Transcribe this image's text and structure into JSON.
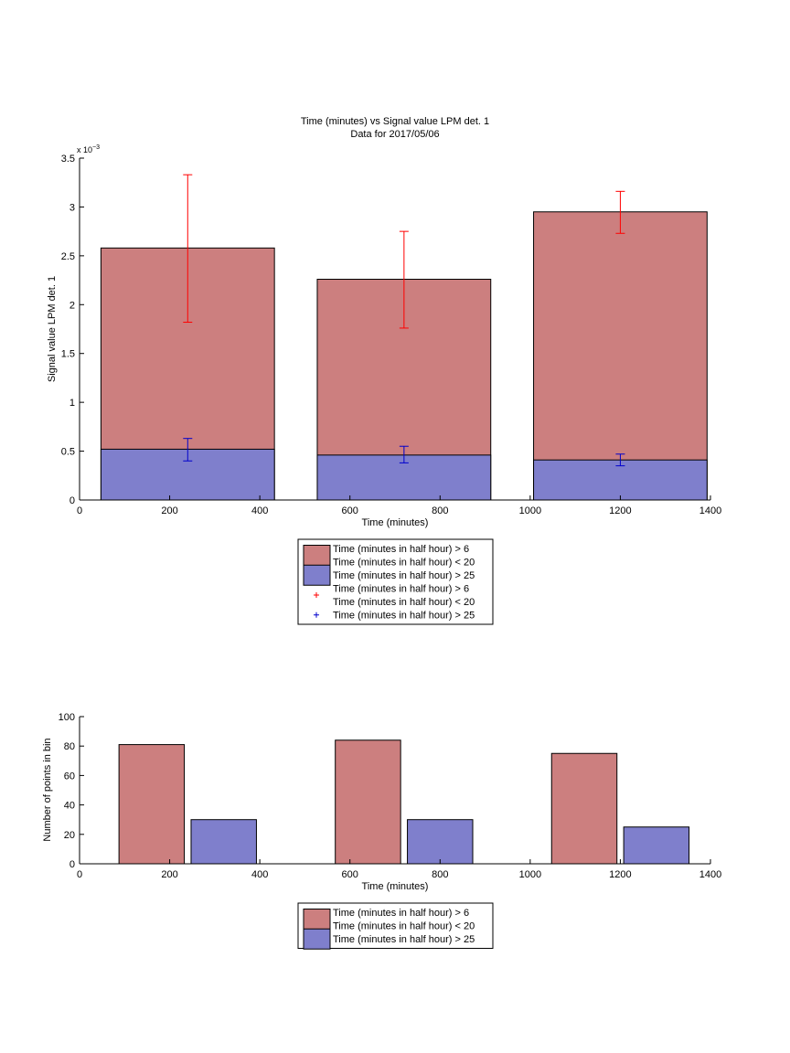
{
  "colors": {
    "red_fill": "#cc7f7f",
    "blue_fill": "#7f7fcc",
    "red_err": "#ff0000",
    "blue_err": "#0000cc"
  },
  "chart_data": [
    {
      "type": "bar",
      "title": "Time (minutes) vs Signal value LPM det. 1",
      "subtitle": "Data for 2017/05/06",
      "xlabel": "Time (minutes)",
      "ylabel": "Signal value LPM det. 1",
      "y_exponent_label": "x 10",
      "y_exponent": "−3",
      "xlim": [
        0,
        1400
      ],
      "ylim": [
        0,
        3.5
      ],
      "y_scale_factor": 0.001,
      "xticks": [
        "0",
        "200",
        "400",
        "600",
        "800",
        "1000",
        "1200",
        "1400"
      ],
      "xtick_values": [
        0,
        200,
        400,
        600,
        800,
        1000,
        1200,
        1400
      ],
      "yticks": [
        "0",
        "0.5",
        "1",
        "1.5",
        "2",
        "2.5",
        "3",
        "3.5"
      ],
      "ytick_values": [
        0,
        0.5,
        1,
        1.5,
        2,
        2.5,
        3,
        3.5
      ],
      "x": [
        240,
        720,
        1200
      ],
      "bar_width": 385,
      "stacked": true,
      "series": [
        {
          "name": "Time (minutes in half hour) > 6 Time (minutes in half hour) < 20",
          "color": "red",
          "values": [
            2.58,
            2.26,
            2.95
          ],
          "err_low": [
            1.82,
            1.76,
            2.73
          ],
          "err_high": [
            3.33,
            2.75,
            3.16
          ]
        },
        {
          "name": "Time (minutes in half hour) > 25",
          "color": "blue",
          "values": [
            0.52,
            0.46,
            0.41
          ],
          "err_low": [
            0.4,
            0.38,
            0.35
          ],
          "err_high": [
            0.63,
            0.55,
            0.47
          ]
        }
      ],
      "legend_position": "below",
      "legend": [
        {
          "kind": "patch",
          "color": "red",
          "lines": [
            "Time (minutes in half hour) > 6",
            "Time (minutes in half hour) < 20"
          ]
        },
        {
          "kind": "patch",
          "color": "blue",
          "lines": [
            "Time (minutes in half hour) > 25"
          ]
        },
        {
          "kind": "marker",
          "color": "red",
          "lines": [
            "Time (minutes in half hour) > 6",
            "Time (minutes in half hour) < 20"
          ]
        },
        {
          "kind": "marker",
          "color": "blue",
          "lines": [
            "Time (minutes in half hour) > 25"
          ]
        }
      ]
    },
    {
      "type": "bar",
      "xlabel": "Time (minutes)",
      "ylabel": "Number of points in bin",
      "xlim": [
        0,
        1400
      ],
      "ylim": [
        0,
        100
      ],
      "xticks": [
        "0",
        "200",
        "400",
        "600",
        "800",
        "1000",
        "1200",
        "1400"
      ],
      "xtick_values": [
        0,
        200,
        400,
        600,
        800,
        1000,
        1200,
        1400
      ],
      "yticks": [
        "0",
        "20",
        "40",
        "60",
        "80",
        "100"
      ],
      "ytick_values": [
        0,
        20,
        40,
        60,
        80,
        100
      ],
      "grouped": true,
      "bar_width": 145,
      "series": [
        {
          "name": "Time (minutes in half hour) > 6 Time (minutes in half hour) < 20",
          "color": "red",
          "x": [
            160,
            640,
            1120
          ],
          "values": [
            81,
            84,
            75
          ]
        },
        {
          "name": "Time (minutes in half hour) > 25",
          "color": "blue",
          "x": [
            320,
            800,
            1280
          ],
          "values": [
            30,
            30,
            25
          ]
        }
      ],
      "legend_position": "below",
      "legend": [
        {
          "kind": "patch",
          "color": "red",
          "lines": [
            "Time (minutes in half hour) > 6",
            "Time (minutes in half hour) < 20"
          ]
        },
        {
          "kind": "patch",
          "color": "blue",
          "lines": [
            "Time (minutes in half hour) > 25"
          ]
        }
      ]
    }
  ]
}
